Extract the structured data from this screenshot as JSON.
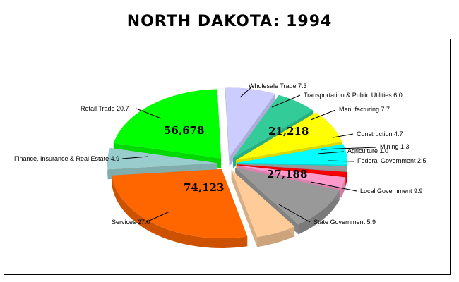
{
  "chart_data": {
    "type": "pie",
    "title": "NORTH DAKOTA:  1994",
    "categories": [
      "Wholesale Trade",
      "Transportation & Public Utilities",
      "Manufacturing",
      "Construction",
      "Mining",
      "Agriculture",
      "Federal Government",
      "Local Government",
      "State Government",
      "Services",
      "Finance, Insurance & Real Estate",
      "Retail Trade"
    ],
    "values": [
      7.3,
      6.0,
      7.7,
      4.7,
      1.3,
      1.0,
      2.5,
      9.9,
      5.9,
      27.0,
      4.9,
      20.7
    ],
    "labels": [
      "Wholesale Trade 7.3",
      "Transportation & Public Utilities 6.0",
      "Manufacturing 7.7",
      "Construction 4.7",
      "Mining 1.3",
      "Agriculture 1.0",
      "Federal Government 2.5",
      "Local Government 9.9",
      "State Government 5.9",
      "Services 27.0",
      "Finance, Insurance & Real Estate 4.9",
      "Retail Trade 20.7"
    ],
    "colors": [
      "#ccccff",
      "#33cc99",
      "#ffff00",
      "#00ffff",
      "#999999",
      "#ff0000",
      "#ff99cc",
      "#999999",
      "#ffcc99",
      "#ff6600",
      "#99cccc",
      "#00ff00"
    ],
    "data_labels": [
      {
        "category": "Retail Trade",
        "text": "56,678"
      },
      {
        "category": "Manufacturing",
        "text": "21,218"
      },
      {
        "category": "Local Government",
        "text": "27,188"
      },
      {
        "category": "Services",
        "text": "74,123"
      }
    ],
    "exploded": true,
    "legend": "none"
  }
}
